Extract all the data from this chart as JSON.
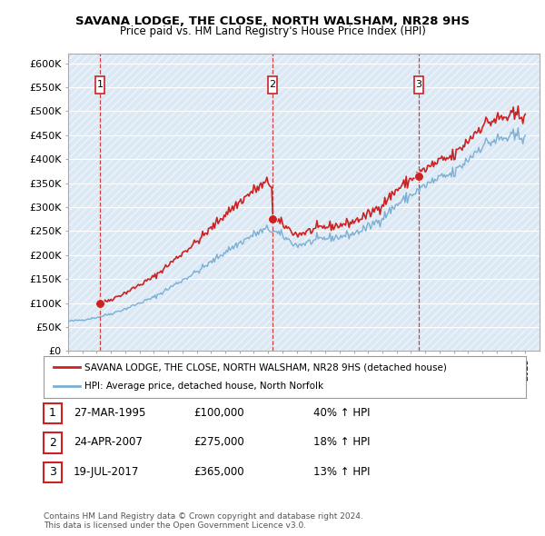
{
  "title": "SAVANA LODGE, THE CLOSE, NORTH WALSHAM, NR28 9HS",
  "subtitle": "Price paid vs. HM Land Registry's House Price Index (HPI)",
  "ylim": [
    0,
    620000
  ],
  "yticks": [
    0,
    50000,
    100000,
    150000,
    200000,
    250000,
    300000,
    350000,
    400000,
    450000,
    500000,
    550000,
    600000
  ],
  "ytick_labels": [
    "£0",
    "£50K",
    "£100K",
    "£150K",
    "£200K",
    "£250K",
    "£300K",
    "£350K",
    "£400K",
    "£450K",
    "£500K",
    "£550K",
    "£600K"
  ],
  "hpi_color": "#7bafd4",
  "price_color": "#cc2222",
  "chart_bg": "#dce9f5",
  "sale_year_floats": [
    1995.23,
    2007.31,
    2017.55
  ],
  "sale_prices": [
    100000,
    275000,
    365000
  ],
  "sale_labels": [
    "1",
    "2",
    "3"
  ],
  "hpi_anchors_x": [
    1993,
    1994,
    1995,
    1996,
    1997,
    1998,
    1999,
    2000,
    2001,
    2002,
    2003,
    2004,
    2005,
    2006,
    2007,
    2008,
    2009,
    2010,
    2011,
    2012,
    2013,
    2014,
    2015,
    2016,
    2017,
    2018,
    2019,
    2020,
    2021,
    2022,
    2023,
    2024,
    2025
  ],
  "hpi_anchors_y": [
    62000,
    65000,
    70000,
    78000,
    88000,
    100000,
    112000,
    130000,
    148000,
    165000,
    185000,
    207000,
    225000,
    243000,
    255000,
    240000,
    220000,
    228000,
    235000,
    238000,
    245000,
    258000,
    278000,
    305000,
    325000,
    345000,
    360000,
    370000,
    400000,
    430000,
    440000,
    445000,
    450000
  ],
  "legend_label_price": "SAVANA LODGE, THE CLOSE, NORTH WALSHAM, NR28 9HS (detached house)",
  "legend_label_hpi": "HPI: Average price, detached house, North Norfolk",
  "table_rows": [
    {
      "num": "1",
      "date": "27-MAR-1995",
      "price": "£100,000",
      "change": "40% ↑ HPI"
    },
    {
      "num": "2",
      "date": "24-APR-2007",
      "price": "£275,000",
      "change": "18% ↑ HPI"
    },
    {
      "num": "3",
      "date": "19-JUL-2017",
      "price": "£365,000",
      "change": "13% ↑ HPI"
    }
  ],
  "footer": "Contains HM Land Registry data © Crown copyright and database right 2024.\nThis data is licensed under the Open Government Licence v3.0.",
  "background_color": "#ffffff"
}
